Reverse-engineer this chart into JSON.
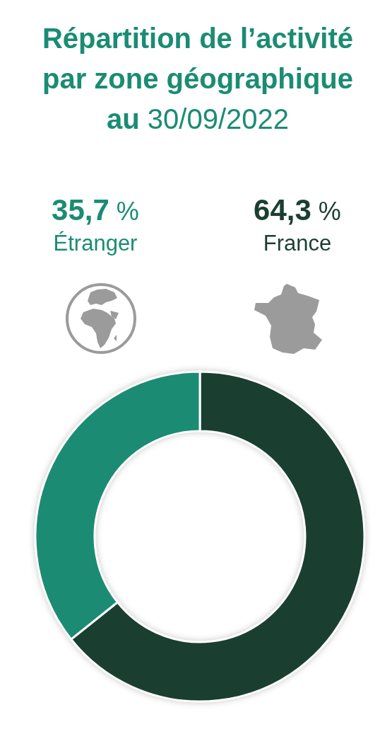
{
  "chart_data": {
    "type": "donut",
    "title": "Répartition de l’activité par zone géographique au 30/09/2022",
    "categories": [
      "France",
      "Étranger"
    ],
    "values": [
      64.3,
      35.7
    ],
    "colors": [
      "#1a3f31",
      "#1b8c73"
    ],
    "value_labels": [
      "64,3 %",
      "35,7 %"
    ]
  }
}
